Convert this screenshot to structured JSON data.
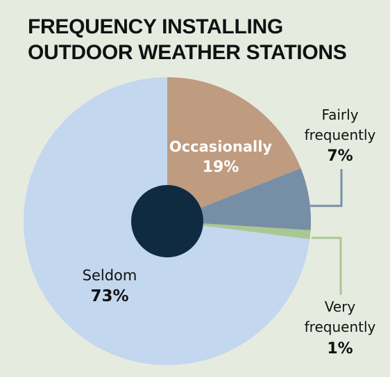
{
  "title_lines": [
    "FREQUENCY INSTALLING",
    "OUTDOOR WEATHER STATIONS"
  ],
  "colors": {
    "background": "#e6ebe0",
    "occasionally": "#bf9b7f",
    "fairly_frequently": "#768fa6",
    "very_frequently": "#a9c793",
    "seldom": "#c3d7ee",
    "center_hole": "#0f2b42"
  },
  "chart_data": {
    "type": "pie",
    "title": "FREQUENCY INSTALLING OUTDOOR WEATHER STATIONS",
    "slices": [
      {
        "label": "Occasionally",
        "value": 19,
        "value_label": "19%"
      },
      {
        "label": "Fairly frequently",
        "value": 7,
        "value_label": "7%"
      },
      {
        "label": "Very frequently",
        "value": 1,
        "value_label": "1%"
      },
      {
        "label": "Seldom",
        "value": 73,
        "value_label": "73%"
      }
    ],
    "start_angle_deg": 0,
    "direction": "clockwise",
    "labels": {
      "occasionally": {
        "name": "Occasionally",
        "pct": "19%"
      },
      "fairly": {
        "line1": "Fairly",
        "line2": "frequently",
        "pct": "7%"
      },
      "very": {
        "line1": "Very",
        "line2": "frequently",
        "pct": "1%"
      },
      "seldom": {
        "name": "Seldom",
        "pct": "73%"
      }
    }
  }
}
